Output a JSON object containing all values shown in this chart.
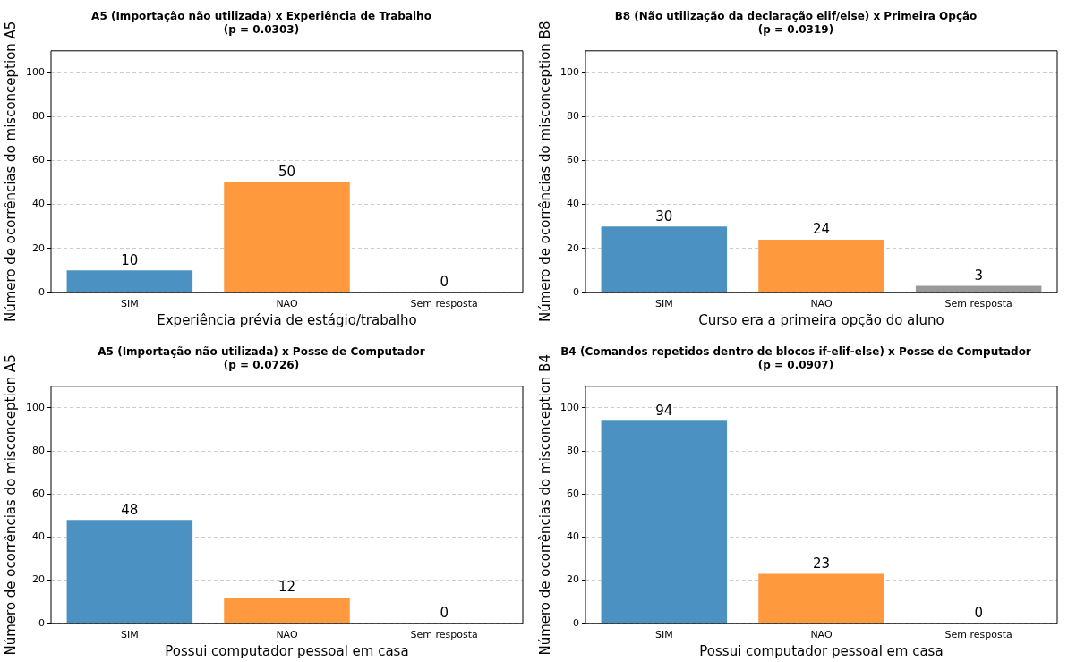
{
  "chart_data": [
    {
      "type": "bar",
      "title": "A5 (Importação não utilizada) x Experiência de Trabalho",
      "subtitle": "(p = 0.0303)",
      "xlabel": "Experiência prévia de estágio/trabalho",
      "ylabel": "Número de ocorrências do misconception A5",
      "categories": [
        "SIM",
        "NAO",
        "Sem resposta"
      ],
      "values": [
        10,
        50,
        0
      ],
      "colors": [
        "#4b92c3",
        "#ff993e",
        "#999999"
      ],
      "ylim": [
        0,
        110
      ],
      "yticks": [
        0,
        20,
        40,
        60,
        80,
        100
      ],
      "grid": "y",
      "data_labels": true
    },
    {
      "type": "bar",
      "title": "B8 (Não utilização da declaração elif/else) x Primeira Opção",
      "subtitle": "(p = 0.0319)",
      "xlabel": "Curso era a primeira opção do aluno",
      "ylabel": "Número de ocorrências do misconception B8",
      "categories": [
        "SIM",
        "NAO",
        "Sem resposta"
      ],
      "values": [
        30,
        24,
        3
      ],
      "colors": [
        "#4b92c3",
        "#ff993e",
        "#999999"
      ],
      "ylim": [
        0,
        110
      ],
      "yticks": [
        0,
        20,
        40,
        60,
        80,
        100
      ],
      "grid": "y",
      "data_labels": true
    },
    {
      "type": "bar",
      "title": "A5 (Importação não utilizada) x Posse de Computador",
      "subtitle": "(p = 0.0726)",
      "xlabel": "Possui computador pessoal em casa",
      "ylabel": "Número de ocorrências do misconception A5",
      "categories": [
        "SIM",
        "NAO",
        "Sem resposta"
      ],
      "values": [
        48,
        12,
        0
      ],
      "colors": [
        "#4b92c3",
        "#ff993e",
        "#999999"
      ],
      "ylim": [
        0,
        110
      ],
      "yticks": [
        0,
        20,
        40,
        60,
        80,
        100
      ],
      "grid": "y",
      "data_labels": true
    },
    {
      "type": "bar",
      "title": "B4 (Comandos repetidos dentro de blocos if-elif-else) x Posse de Computador",
      "subtitle": "(p = 0.0907)",
      "xlabel": "Possui computador pessoal em casa",
      "ylabel": "Número de ocorrências do misconception B4",
      "categories": [
        "SIM",
        "NAO",
        "Sem resposta"
      ],
      "values": [
        94,
        23,
        0
      ],
      "colors": [
        "#4b92c3",
        "#ff993e",
        "#999999"
      ],
      "ylim": [
        0,
        110
      ],
      "yticks": [
        0,
        20,
        40,
        60,
        80,
        100
      ],
      "grid": "y",
      "data_labels": true
    }
  ]
}
